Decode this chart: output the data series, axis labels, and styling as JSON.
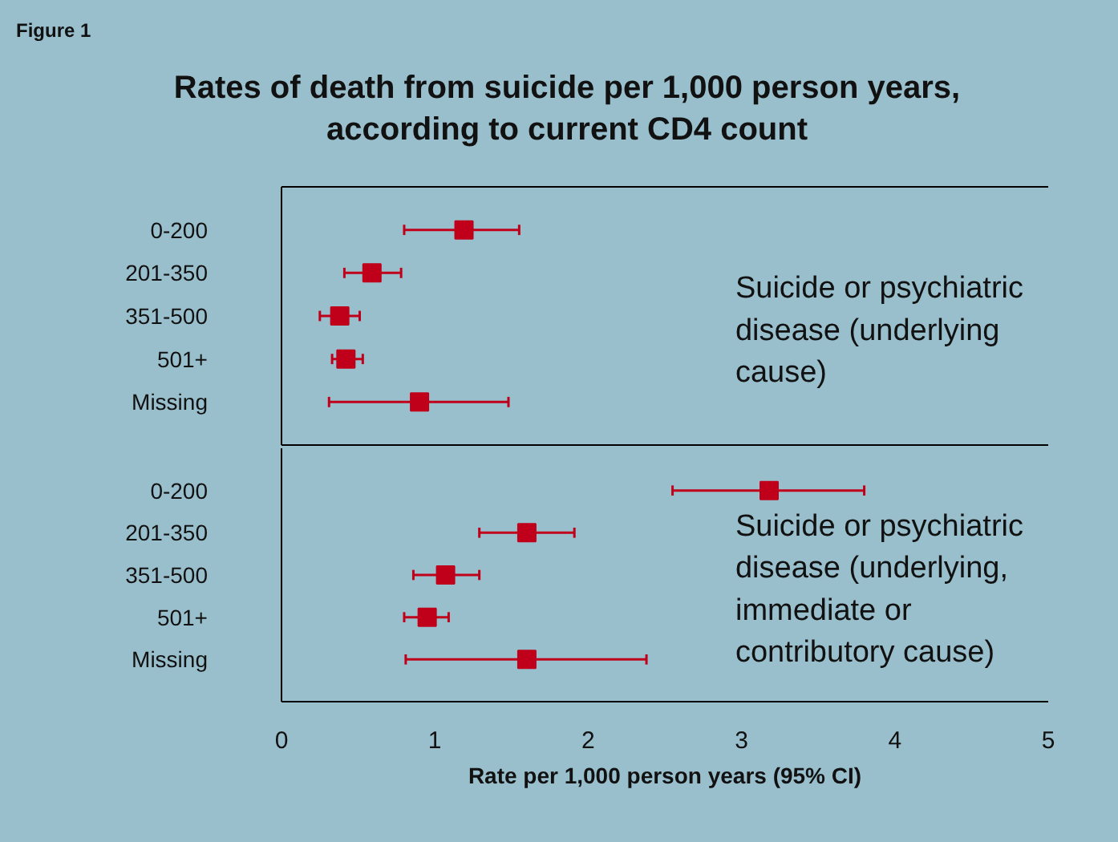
{
  "chart_data": [
    {
      "type": "scatter",
      "orientation": "horizontal",
      "title": "Rates of death from suicide per 1,000 person years, according to current CD4 count",
      "annotations": [
        "Figure 1",
        "Suicide or psychiatric disease (underlying cause)"
      ],
      "categories": [
        "0-200",
        "201-350",
        "351-500",
        "501+",
        "Missing"
      ],
      "values": [
        1.19,
        0.59,
        0.38,
        0.42,
        0.9
      ],
      "errors": [
        [
          0.8,
          1.55
        ],
        [
          0.41,
          0.78
        ],
        [
          0.25,
          0.51
        ],
        [
          0.33,
          0.53
        ],
        [
          0.31,
          1.48
        ]
      ],
      "color": "#c0001a",
      "marker": "square",
      "xlim": [
        0,
        5
      ],
      "tick_labels": "y"
    },
    {
      "type": "scatter",
      "orientation": "horizontal",
      "xlabel": "Rate per 1,000 person years (95% CI)",
      "annotations": [
        "Suicide or psychiatric disease (underlying, immediate or contributory cause)"
      ],
      "categories": [
        "0-200",
        "201-350",
        "351-500",
        "501+",
        "Missing"
      ],
      "values": [
        3.18,
        1.6,
        1.07,
        0.95,
        1.6
      ],
      "errors": [
        [
          2.55,
          3.8
        ],
        [
          1.29,
          1.91
        ],
        [
          0.86,
          1.29
        ],
        [
          0.8,
          1.09
        ],
        [
          0.81,
          2.38
        ]
      ],
      "color": "#c0001a",
      "marker": "square",
      "xlim": [
        0,
        5
      ],
      "xticks": [
        0,
        1,
        2,
        3,
        4,
        5
      ]
    }
  ]
}
